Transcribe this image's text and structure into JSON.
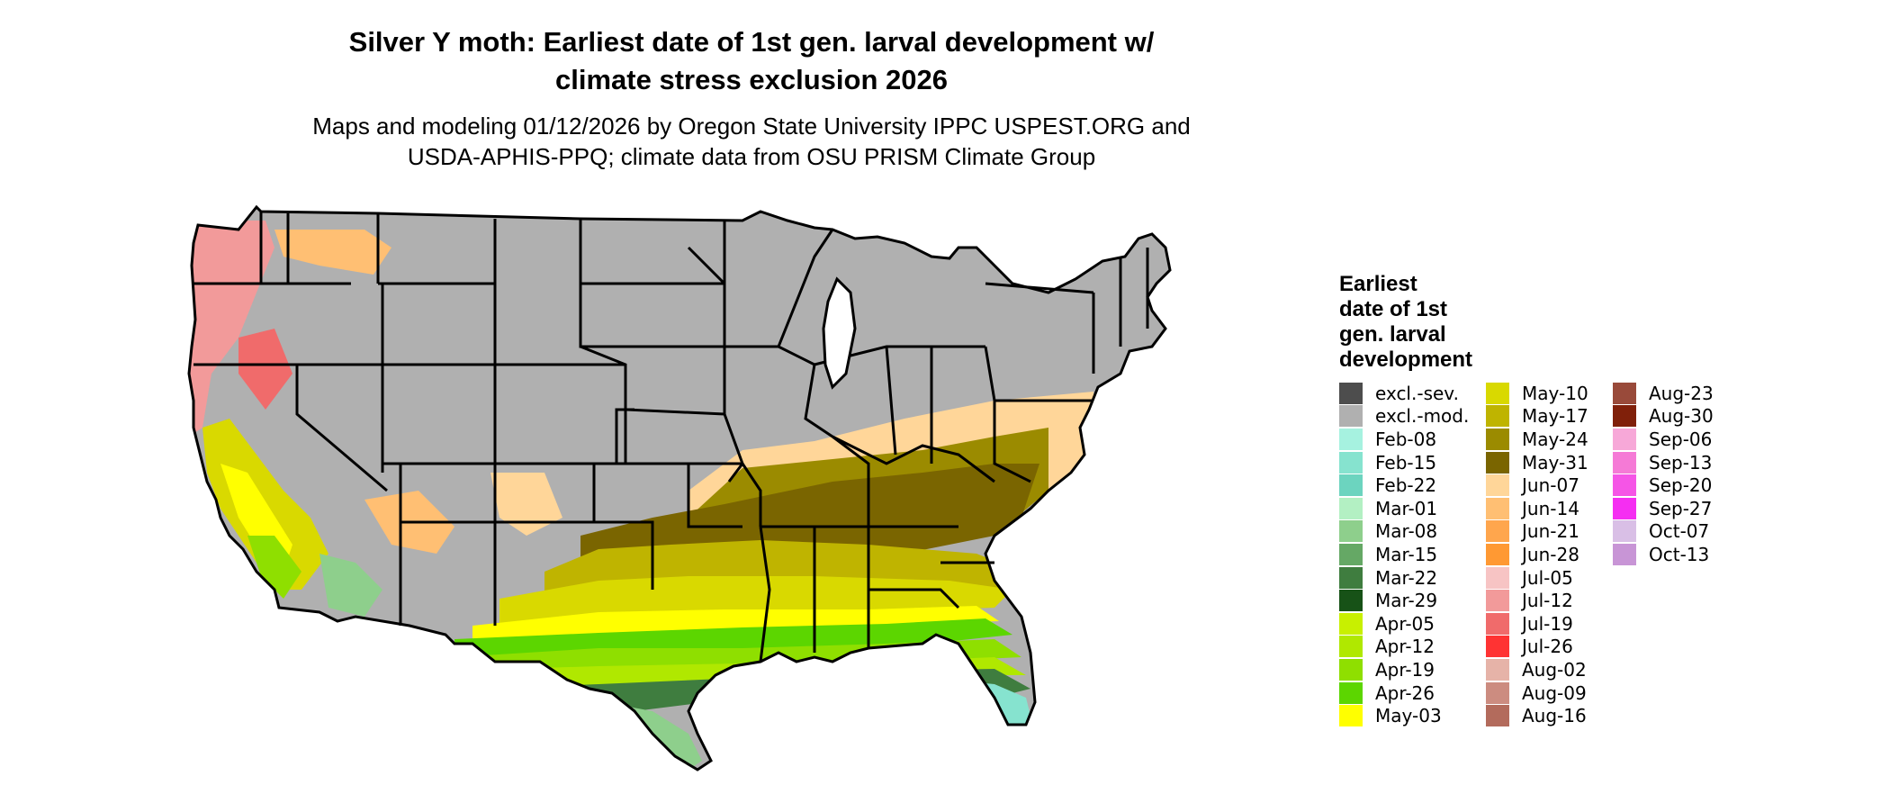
{
  "title_line1": "Silver Y moth: Earliest date of 1st gen. larval development w/",
  "title_line2": "climate stress exclusion 2026",
  "subtitle_line1": "Maps and modeling 01/12/2026 by Oregon State University IPPC USPEST.ORG and",
  "subtitle_line2": "USDA-APHIS-PPQ; climate data from OSU PRISM Climate Group",
  "legend": {
    "title_lines": [
      "Earliest",
      "date of 1st",
      "gen. larval",
      "development"
    ],
    "columns": [
      [
        {
          "label": "excl.-sev.",
          "color": "#4d4d4d"
        },
        {
          "label": "excl.-mod.",
          "color": "#b0b0b0"
        },
        {
          "label": "Feb-08",
          "color": "#a6f2e0"
        },
        {
          "label": "Feb-15",
          "color": "#86e3cf"
        },
        {
          "label": "Feb-22",
          "color": "#6cd4bf"
        },
        {
          "label": "Mar-01",
          "color": "#b3f0c3"
        },
        {
          "label": "Mar-08",
          "color": "#8ecf8c"
        },
        {
          "label": "Mar-15",
          "color": "#65a865"
        },
        {
          "label": "Mar-22",
          "color": "#3f7d3f"
        },
        {
          "label": "Mar-29",
          "color": "#175217"
        },
        {
          "label": "Apr-05",
          "color": "#c8f000"
        },
        {
          "label": "Apr-12",
          "color": "#b0e800"
        },
        {
          "label": "Apr-19",
          "color": "#8fdf00"
        },
        {
          "label": "Apr-26",
          "color": "#5cd600"
        },
        {
          "label": "May-03",
          "color": "#ffff00"
        }
      ],
      [
        {
          "label": "May-10",
          "color": "#d9d900"
        },
        {
          "label": "May-17",
          "color": "#bfb400"
        },
        {
          "label": "May-24",
          "color": "#9b8b00"
        },
        {
          "label": "May-31",
          "color": "#7a6500"
        },
        {
          "label": "Jun-07",
          "color": "#ffd699"
        },
        {
          "label": "Jun-14",
          "color": "#ffbf73"
        },
        {
          "label": "Jun-21",
          "color": "#ffa64d"
        },
        {
          "label": "Jun-28",
          "color": "#ff9933"
        },
        {
          "label": "Jul-05",
          "color": "#f7c4c4"
        },
        {
          "label": "Jul-12",
          "color": "#f29a9a"
        },
        {
          "label": "Jul-19",
          "color": "#f06b6b"
        },
        {
          "label": "Jul-26",
          "color": "#ff3333"
        },
        {
          "label": "Aug-02",
          "color": "#e6b3a8"
        },
        {
          "label": "Aug-09",
          "color": "#cc8c80"
        },
        {
          "label": "Aug-16",
          "color": "#b36b5c"
        }
      ],
      [
        {
          "label": "Aug-23",
          "color": "#994a3a"
        },
        {
          "label": "Aug-30",
          "color": "#80200a"
        },
        {
          "label": "Sep-06",
          "color": "#f7a8d8"
        },
        {
          "label": "Sep-13",
          "color": "#f57ad6"
        },
        {
          "label": "Sep-20",
          "color": "#f555e6"
        },
        {
          "label": "Sep-27",
          "color": "#f52ef2"
        },
        {
          "label": "Oct-07",
          "color": "#d9bfe6"
        },
        {
          "label": "Oct-13",
          "color": "#c895d6"
        }
      ]
    ]
  }
}
